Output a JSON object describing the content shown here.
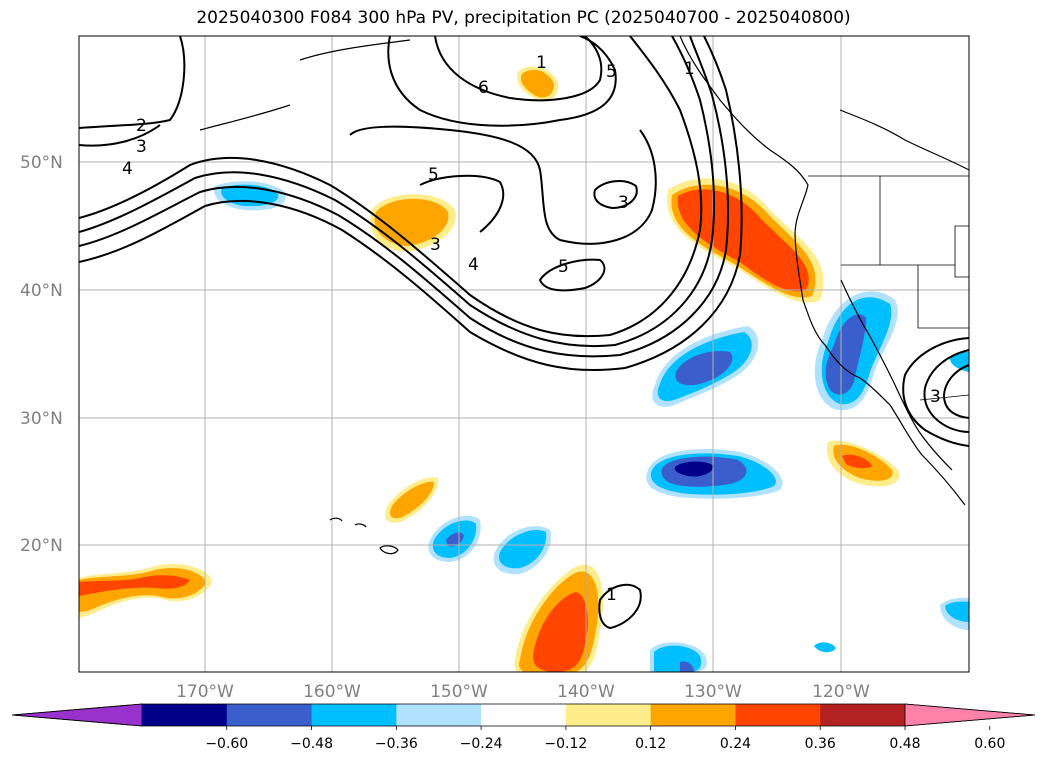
{
  "title": "2025040300 F084 300 hPa PV, precipitation PC (2025040700 - 2025040800)",
  "lat_labels": [
    "50°N",
    "40°N",
    "30°N",
    "20°N"
  ],
  "lon_labels": [
    "170°W",
    "160°W",
    "150°W",
    "140°W",
    "130°W",
    "120°W"
  ],
  "colorbar": {
    "ticks": [
      "−0.60",
      "−0.48",
      "−0.36",
      "−0.24",
      "−0.12",
      "0.12",
      "0.24",
      "0.36",
      "0.48",
      "0.60"
    ],
    "colors": [
      "#9932cc",
      "#00008b",
      "#3a5fcd",
      "#00bfff",
      "#b0e2ff",
      "#ffffff",
      "#ffec8b",
      "#ffa500",
      "#ff4500",
      "#b22222",
      "#ff82ab"
    ]
  },
  "contour_labels": [
    "1",
    "2",
    "3",
    "4",
    "5",
    "6"
  ]
}
